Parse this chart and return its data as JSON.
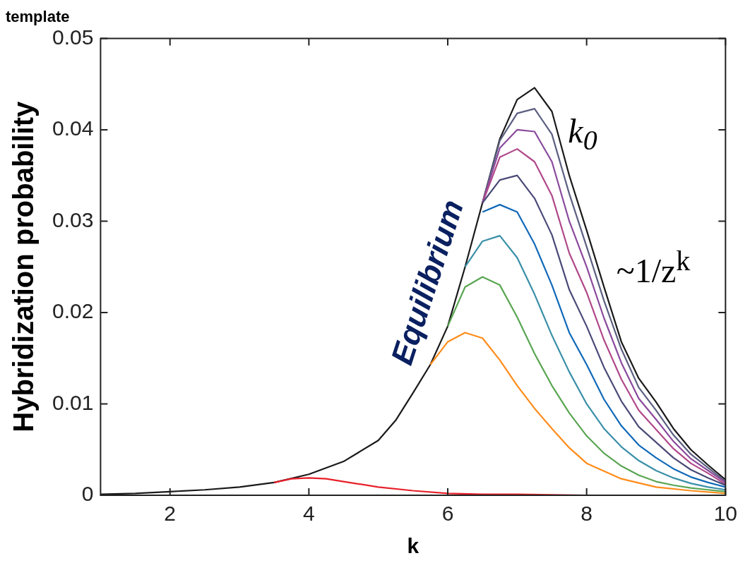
{
  "chart_data": {
    "type": "line",
    "title": "template",
    "xlabel": "k",
    "ylabel": "Hybridization probability",
    "xlim": [
      1,
      10
    ],
    "xticks": [
      2,
      4,
      6,
      8,
      10
    ],
    "ylim": [
      0,
      0.05
    ],
    "yticks": [
      0,
      0.01,
      0.02,
      0.03,
      0.04,
      0.05
    ],
    "grid": false,
    "legend": false,
    "marker": "none",
    "line_style": "solid",
    "annotations": [
      "Equilibrium",
      "k$_{0}$",
      "~1/z$^{k}$"
    ],
    "series": [
      {
        "color": "#e8202a",
        "x": [
          3.5,
          3.75,
          4,
          4.25,
          4.5,
          5,
          5.5,
          6,
          6.5,
          7,
          8
        ],
        "values": [
          0.0014,
          0.0018,
          0.0019,
          0.0018,
          0.0015,
          0.0009,
          0.0005,
          0.0002,
          0.0001,
          0.0001,
          0
        ]
      },
      {
        "color": "#ff8c1a",
        "x": [
          5.75,
          6,
          6.25,
          6.5,
          6.75,
          7,
          7.25,
          7.5,
          7.75,
          8,
          8.5,
          9,
          9.5,
          10
        ],
        "values": [
          0.0143,
          0.0168,
          0.0178,
          0.0172,
          0.0148,
          0.012,
          0.0095,
          0.0073,
          0.0052,
          0.0035,
          0.0018,
          0.0009,
          0.0005,
          0.0002
        ]
      },
      {
        "color": "#5aa552",
        "x": [
          6,
          6.25,
          6.5,
          6.75,
          7,
          7.25,
          7.5,
          7.75,
          8,
          8.25,
          8.5,
          8.75,
          9,
          9.25,
          9.5,
          9.75,
          10
        ],
        "values": [
          0.0185,
          0.0228,
          0.0239,
          0.023,
          0.0195,
          0.0155,
          0.012,
          0.009,
          0.0065,
          0.0046,
          0.0032,
          0.0022,
          0.0015,
          0.0011,
          0.0008,
          0.0006,
          0.0004
        ]
      },
      {
        "color": "#3a8fa8",
        "x": [
          6.25,
          6.5,
          6.75,
          7,
          7.25,
          7.5,
          7.75,
          8,
          8.25,
          8.5,
          8.75,
          9,
          9.25,
          9.5,
          9.75,
          10
        ],
        "values": [
          0.025,
          0.0278,
          0.0284,
          0.026,
          0.022,
          0.0175,
          0.0135,
          0.01,
          0.0073,
          0.0053,
          0.0038,
          0.0027,
          0.0019,
          0.0013,
          0.0009,
          0.0006
        ]
      },
      {
        "color": "#1069b8",
        "x": [
          6.5,
          6.75,
          7,
          7.25,
          7.5,
          7.75,
          8,
          8.25,
          8.5,
          8.75,
          9,
          9.25,
          9.5,
          9.75,
          10
        ],
        "values": [
          0.031,
          0.0318,
          0.031,
          0.0275,
          0.023,
          0.0178,
          0.0143,
          0.0105,
          0.0076,
          0.0055,
          0.0041,
          0.0029,
          0.002,
          0.0014,
          0.0009
        ]
      },
      {
        "color": "#4a4a78",
        "x": [
          6.5,
          6.75,
          7,
          7.25,
          7.5,
          7.75,
          8,
          8.25,
          8.5,
          8.75,
          9,
          9.25,
          9.5,
          9.75,
          10
        ],
        "values": [
          0.032,
          0.0345,
          0.035,
          0.0325,
          0.0285,
          0.0225,
          0.0185,
          0.014,
          0.0103,
          0.0075,
          0.0058,
          0.0041,
          0.0028,
          0.0019,
          0.0011
        ]
      },
      {
        "color": "#b0488a",
        "x": [
          6.5,
          6.75,
          7,
          7.25,
          7.5,
          7.75,
          8,
          8.25,
          8.5,
          8.75,
          9,
          9.25,
          9.5,
          9.75,
          10
        ],
        "values": [
          0.032,
          0.037,
          0.0379,
          0.0365,
          0.0328,
          0.0265,
          0.0222,
          0.017,
          0.0127,
          0.0093,
          0.0072,
          0.0051,
          0.0035,
          0.0024,
          0.0012
        ]
      },
      {
        "color": "#8a4a9c",
        "x": [
          6.5,
          6.75,
          7,
          7.25,
          7.5,
          7.75,
          8,
          8.25,
          8.5,
          8.75,
          9,
          9.25,
          9.5,
          9.75,
          10
        ],
        "values": [
          0.032,
          0.038,
          0.04,
          0.0398,
          0.0365,
          0.03,
          0.025,
          0.0194,
          0.0145,
          0.0106,
          0.0083,
          0.0059,
          0.004,
          0.0027,
          0.0014
        ]
      },
      {
        "color": "#5a5f80",
        "x": [
          6.5,
          6.75,
          7,
          7.25,
          7.5,
          7.75,
          8,
          8.25,
          8.5,
          8.75,
          9,
          9.25,
          9.5,
          9.75,
          10
        ],
        "values": [
          0.032,
          0.0388,
          0.0418,
          0.0423,
          0.0395,
          0.033,
          0.0272,
          0.0213,
          0.016,
          0.0118,
          0.0093,
          0.0066,
          0.0045,
          0.003,
          0.0015
        ]
      },
      {
        "color": "#1a1a1a",
        "x": [
          1,
          1.5,
          2,
          2.5,
          3,
          3.5,
          4,
          4.5,
          5,
          5.25,
          5.5,
          5.75,
          6,
          6.25,
          6.5,
          6.75,
          7,
          7.25,
          7.5,
          7.75,
          8,
          8.25,
          8.5,
          8.75,
          9,
          9.25,
          9.5,
          9.75,
          10
        ],
        "values": [
          0.0001,
          0.0002,
          0.0004,
          0.0006,
          0.0009,
          0.0014,
          0.0023,
          0.0037,
          0.006,
          0.0082,
          0.0112,
          0.0143,
          0.0185,
          0.025,
          0.032,
          0.039,
          0.0433,
          0.0446,
          0.042,
          0.035,
          0.029,
          0.0228,
          0.0168,
          0.0128,
          0.0102,
          0.0073,
          0.005,
          0.0033,
          0.0017
        ]
      }
    ]
  }
}
